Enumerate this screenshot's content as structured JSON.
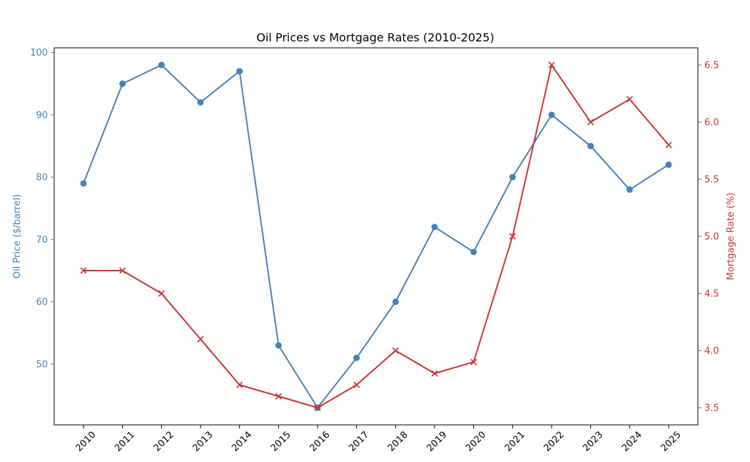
{
  "chart_data": {
    "type": "line",
    "title": "Oil Prices vs Mortgage Rates (2010-2025)",
    "xlabel": "",
    "categories": [
      "2010",
      "2011",
      "2012",
      "2013",
      "2014",
      "2015",
      "2016",
      "2017",
      "2018",
      "2019",
      "2020",
      "2021",
      "2022",
      "2023",
      "2024",
      "2025"
    ],
    "y_left": {
      "label": "Oil Price ($/barrel)",
      "ticks": [
        50,
        60,
        70,
        80,
        90,
        100
      ],
      "ylim": [
        40.25,
        100.75
      ],
      "color": "#4682b4"
    },
    "y_right": {
      "label": "Mortgage Rate (%)",
      "ticks": [
        3.5,
        4.0,
        4.5,
        5.0,
        5.5,
        6.0,
        6.5
      ],
      "ylim": [
        3.35,
        6.65
      ],
      "color": "#cc3333"
    },
    "series": [
      {
        "axis": "left",
        "marker": "circle",
        "color": "#4682b4",
        "values": [
          79,
          95,
          98,
          92,
          97,
          53,
          43,
          51,
          60,
          72,
          68,
          80,
          90,
          85,
          78,
          82
        ]
      },
      {
        "axis": "right",
        "marker": "x",
        "color": "#cc3333",
        "values": [
          4.7,
          4.7,
          4.5,
          4.1,
          3.7,
          3.6,
          3.5,
          3.7,
          4.0,
          3.8,
          3.9,
          5.0,
          6.5,
          6.0,
          6.2,
          5.8
        ]
      }
    ],
    "grid": false,
    "legend": "none"
  }
}
